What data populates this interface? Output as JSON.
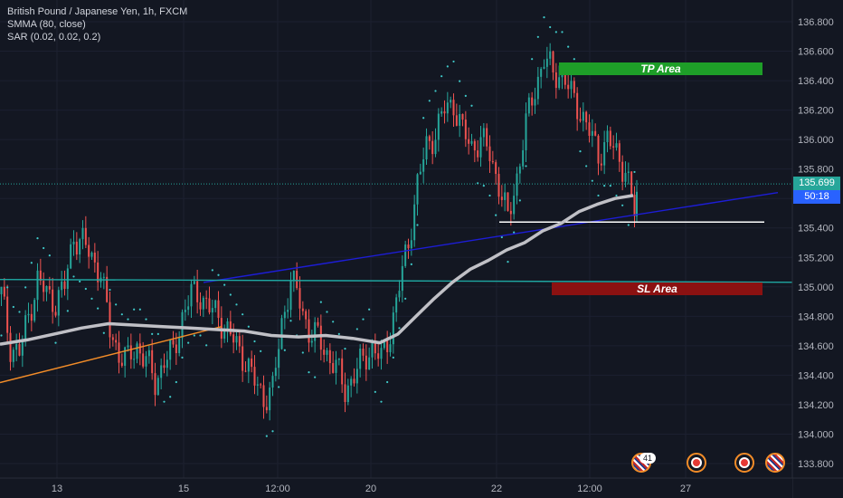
{
  "legend": {
    "symbol": "British Pound / Japanese Yen, 1h, FXCM",
    "indicator_1": "SMMA (80, close)",
    "indicator_2": "SAR (0.02, 0.02, 0.2)"
  },
  "price_scale": {
    "current_price": "135.699",
    "countdown": "50:18",
    "current_color": "#26a69a",
    "countdown_color": "#2962ff"
  },
  "zones": {
    "tp_label": "TP Area",
    "sl_label": "SL Area",
    "tp_color": "#1e9e28",
    "sl_color": "#8b1111"
  },
  "events": {
    "badge_count": "41",
    "icons": [
      "uk-flag-icon",
      "japan-flag-icon",
      "japan-flag-icon",
      "uk-flag-icon"
    ]
  },
  "chart_data": {
    "type": "candlestick",
    "title": "British Pound / Japanese Yen, 1h, FXCM",
    "ylim": [
      133.75,
      136.95
    ],
    "y_ticks": [
      "136.800",
      "136.600",
      "136.400",
      "136.200",
      "136.000",
      "135.800",
      "135.600",
      "135.400",
      "135.200",
      "135.000",
      "134.800",
      "134.600",
      "134.400",
      "134.200",
      "134.000",
      "133.800"
    ],
    "x_ticks": [
      "13",
      "15",
      "12:00",
      "20",
      "22",
      "12:00",
      "27"
    ],
    "series": [
      {
        "name": "GBPJPY close",
        "x": [
          0,
          10,
          20,
          30,
          40,
          50,
          60,
          70,
          80,
          90,
          100,
          110,
          120,
          130,
          140,
          150,
          160,
          170,
          180,
          190,
          200,
          210,
          220,
          230,
          240,
          250,
          260,
          270,
          280,
          290,
          300,
          310,
          320,
          330,
          340,
          350,
          360,
          370,
          380,
          390,
          400,
          410,
          420,
          430,
          440,
          450,
          460,
          470,
          480,
          490,
          500,
          510,
          520,
          530,
          540,
          550,
          560,
          570,
          580,
          590,
          600,
          610,
          620,
          630,
          640,
          650,
          660,
          670,
          680,
          690,
          700,
          705
        ],
        "values": [
          134.95,
          134.6,
          134.55,
          134.8,
          135.05,
          134.95,
          134.9,
          135.0,
          135.35,
          135.3,
          135.2,
          135.1,
          134.7,
          134.55,
          134.5,
          134.6,
          134.5,
          134.35,
          134.5,
          134.55,
          134.8,
          134.95,
          134.95,
          134.85,
          134.8,
          134.7,
          134.6,
          134.5,
          134.35,
          134.25,
          134.3,
          134.75,
          135.05,
          134.9,
          134.7,
          134.65,
          134.55,
          134.45,
          134.3,
          134.4,
          134.5,
          134.6,
          134.5,
          134.7,
          135.0,
          135.3,
          135.7,
          135.95,
          136.05,
          136.2,
          136.25,
          136.05,
          135.95,
          136.0,
          135.9,
          135.7,
          135.45,
          135.75,
          136.1,
          136.35,
          136.55,
          136.45,
          136.45,
          136.3,
          136.2,
          136.05,
          135.9,
          136.0,
          135.9,
          135.8,
          135.5,
          135.7
        ],
        "color": "#26a69a"
      },
      {
        "name": "SMMA (80, close)",
        "x": [
          0,
          30,
          60,
          90,
          120,
          150,
          180,
          210,
          240,
          270,
          300,
          330,
          360,
          390,
          420,
          440,
          460,
          480,
          500,
          520,
          540,
          560,
          580,
          600,
          620,
          640,
          660,
          680,
          700
        ],
        "values": [
          134.61,
          134.64,
          134.68,
          134.72,
          134.75,
          134.74,
          134.73,
          134.72,
          134.71,
          134.7,
          134.67,
          134.66,
          134.67,
          134.65,
          134.62,
          134.68,
          134.8,
          134.92,
          135.03,
          135.12,
          135.18,
          135.25,
          135.3,
          135.38,
          135.43,
          135.51,
          135.56,
          135.6,
          135.62
        ],
        "color": "#c0c0c6"
      }
    ],
    "trendlines": [
      {
        "name": "rising-support-blue",
        "x": [
          225,
          860
        ],
        "values": [
          135.03,
          135.64
        ],
        "color": "#1d1dd6"
      },
      {
        "name": "horizontal-support",
        "x": [
          0,
          932
        ],
        "values": [
          135.05,
          135.03
        ],
        "color": "#1fa7a2"
      },
      {
        "name": "orange-trend",
        "x": [
          0,
          245
        ],
        "values": [
          134.35,
          134.73
        ],
        "color": "#f28c28"
      },
      {
        "name": "white-level",
        "x": [
          552,
          845
        ],
        "values": [
          135.44,
          135.44
        ],
        "color": "#ffffff"
      }
    ],
    "zones": [
      {
        "label": "TP Area",
        "x": [
          618,
          843
        ],
        "y": [
          136.42,
          136.5
        ]
      },
      {
        "label": "SL Area",
        "x": [
          610,
          843
        ],
        "y": [
          134.95,
          135.03
        ]
      }
    ],
    "grid": true,
    "legend_position": "top-left"
  }
}
